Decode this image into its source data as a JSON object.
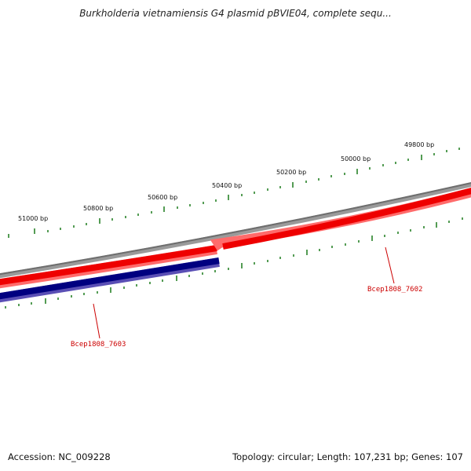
{
  "title": "Burkholderia vietnamiensis G4 plasmid pBVIE04, complete sequ...",
  "footer": {
    "accession": "Accession: NC_009228",
    "summary": "Topology: circular; Length: 107,231 bp; Genes: 107"
  },
  "colors": {
    "backbone": "#808080",
    "gene_forward": "#ee0000",
    "gene_reverse": "#000080",
    "ticks": "#1a7a1a",
    "label": "#cc0000"
  },
  "scale": {
    "labels": [
      "51000 bp",
      "50800 bp",
      "50600 bp",
      "50400 bp",
      "50200 bp",
      "50000 bp",
      "49800 bp"
    ]
  },
  "genes": [
    {
      "name": "Bcep1808_7603",
      "strand": "reverse"
    },
    {
      "name": "Bcep1808_7602",
      "strand": "forward"
    }
  ]
}
